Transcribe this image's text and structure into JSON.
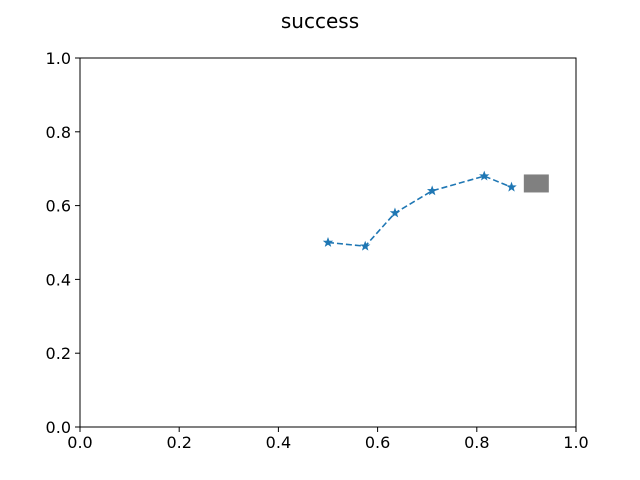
{
  "chart_data": {
    "type": "line",
    "title": "success",
    "xlabel": "",
    "ylabel": "",
    "xlim": [
      0.0,
      1.0
    ],
    "ylim": [
      0.0,
      1.0
    ],
    "xticks": [
      "0.0",
      "0.2",
      "0.4",
      "0.6",
      "0.8",
      "1.0"
    ],
    "yticks": [
      "0.0",
      "0.2",
      "0.4",
      "0.6",
      "0.8",
      "1.0"
    ],
    "grid": false,
    "series": [
      {
        "x": [
          0.5,
          0.575,
          0.635,
          0.71,
          0.815,
          0.87
        ],
        "y": [
          0.5,
          0.49,
          0.58,
          0.64,
          0.68,
          0.65
        ],
        "color": "#1f77b4",
        "linestyle": "dashed",
        "marker": "star"
      }
    ],
    "goal_marker": {
      "x": 0.92,
      "y": 0.66,
      "color": "#808080",
      "shape": "square"
    }
  }
}
